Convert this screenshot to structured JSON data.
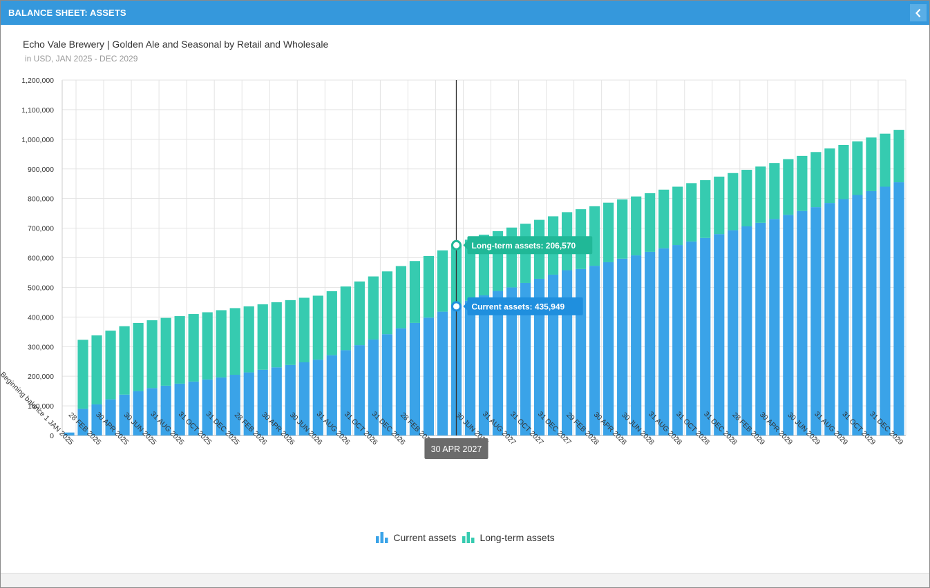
{
  "window": {
    "title": "BALANCE SHEET: ASSETS"
  },
  "chart_data": {
    "type": "bar",
    "stacked": true,
    "title": "Echo Vale Brewery | Golden Ale and Seasonal by Retail and Wholesale",
    "subtitle": "in USD, JAN 2025 - DEC 2029",
    "xlabel": "",
    "ylabel": "",
    "ylim": [
      0,
      1200000
    ],
    "yticks": [
      0,
      100000,
      200000,
      300000,
      400000,
      500000,
      600000,
      700000,
      800000,
      900000,
      1000000,
      1100000,
      1200000
    ],
    "ytick_labels": [
      "0",
      "100,000",
      "200,000",
      "300,000",
      "400,000",
      "500,000",
      "600,000",
      "700,000",
      "800,000",
      "900,000",
      "1,000,000",
      "1,100,000",
      "1,200,000"
    ],
    "grid": true,
    "legend_position": "bottom",
    "categories": [
      "Beginning balance 1 JAN 2025",
      "31 JAN 2025",
      "28 FEB 2025",
      "31 MAR 2025",
      "30 APR 2025",
      "31 MAY 2025",
      "30 JUN 2025",
      "31 JUL 2025",
      "31 AUG 2025",
      "30 SEP 2025",
      "31 OCT 2025",
      "30 NOV 2025",
      "31 DEC 2025",
      "31 JAN 2026",
      "28 FEB 2026",
      "31 MAR 2026",
      "30 APR 2026",
      "31 MAY 2026",
      "30 JUN 2026",
      "31 JUL 2026",
      "31 AUG 2026",
      "30 SEP 2026",
      "31 OCT 2026",
      "30 NOV 2026",
      "31 DEC 2026",
      "31 JAN 2027",
      "28 FEB 2027",
      "31 MAR 2027",
      "30 APR 2027",
      "31 MAY 2027",
      "30 JUN 2027",
      "31 JUL 2027",
      "31 AUG 2027",
      "30 SEP 2027",
      "31 OCT 2027",
      "30 NOV 2027",
      "31 DEC 2027",
      "31 JAN 2028",
      "29 FEB 2028",
      "31 MAR 2028",
      "30 APR 2028",
      "31 MAY 2028",
      "30 JUN 2028",
      "31 JUL 2028",
      "31 AUG 2028",
      "30 SEP 2028",
      "31 OCT 2028",
      "30 NOV 2028",
      "31 DEC 2028",
      "31 JAN 2029",
      "28 FEB 2029",
      "31 MAR 2029",
      "30 APR 2029",
      "31 MAY 2029",
      "30 JUN 2029",
      "31 JUL 2029",
      "31 AUG 2029",
      "30 SEP 2029",
      "31 OCT 2029",
      "30 NOV 2029",
      "31 DEC 2029"
    ],
    "visible_tick_labels": [
      "Beginning balance 1 JAN 2025",
      "28 FEB 2025",
      "30 APR 2025",
      "30 JUN 2025",
      "31 AUG 2025",
      "31 OCT 2025",
      "31 DEC 2025",
      "28 FEB 2026",
      "30 APR 2026",
      "30 JUN 2026",
      "31 AUG 2026",
      "31 OCT 2026",
      "31 DEC 2026",
      "28 FEB 2027",
      "30 JUN 2027",
      "31 AUG 2027",
      "31 OCT 2027",
      "31 DEC 2027",
      "29 FEB 2028",
      "30 APR 2028",
      "30 JUN 2028",
      "31 AUG 2028",
      "31 OCT 2028",
      "31 DEC 2028",
      "28 FEB 2029",
      "30 APR 2029",
      "30 JUN 2029",
      "31 AUG 2029",
      "31 OCT 2029",
      "31 DEC 2029"
    ],
    "series": [
      {
        "name": "Current assets",
        "color": "#3aa3e8",
        "values": [
          10000,
          90000,
          105000,
          122000,
          138000,
          150000,
          160000,
          168000,
          175000,
          182000,
          189000,
          196000,
          205000,
          213000,
          222000,
          230000,
          238000,
          247000,
          256000,
          271000,
          288000,
          305000,
          324000,
          342000,
          362000,
          380000,
          398000,
          418000,
          435949,
          455000,
          473000,
          488000,
          500000,
          515000,
          529000,
          543000,
          558000,
          562000,
          573000,
          585000,
          597000,
          608000,
          620000,
          632000,
          643000,
          655000,
          667000,
          680000,
          693000,
          706000,
          718000,
          731000,
          745000,
          758000,
          771000,
          785000,
          798000,
          812000,
          825000,
          840000,
          855000
        ]
      },
      {
        "name": "Long-term assets",
        "color": "#36cbb0",
        "values": [
          0,
          233000,
          233000,
          232000,
          231000,
          230000,
          229000,
          229000,
          228000,
          228000,
          227000,
          227000,
          225000,
          223000,
          221000,
          220000,
          219000,
          218000,
          216000,
          216000,
          215000,
          215000,
          213000,
          212000,
          210000,
          209000,
          208000,
          207000,
          206570,
          206000,
          205000,
          202000,
          202000,
          200000,
          199000,
          197000,
          196000,
          202000,
          201000,
          201000,
          200000,
          199000,
          198000,
          198000,
          197000,
          197000,
          195000,
          194000,
          193000,
          191000,
          190000,
          189000,
          188000,
          186000,
          186000,
          184000,
          183000,
          181000,
          181000,
          179000,
          177000
        ]
      }
    ],
    "hover": {
      "category": "30 APR 2027",
      "index": 28,
      "labels": {
        "long_term": "Long-term assets: 206,570",
        "current": "Current assets: 435,949"
      }
    }
  },
  "legend": {
    "current_label": "Current assets",
    "longterm_label": "Long-term assets"
  }
}
